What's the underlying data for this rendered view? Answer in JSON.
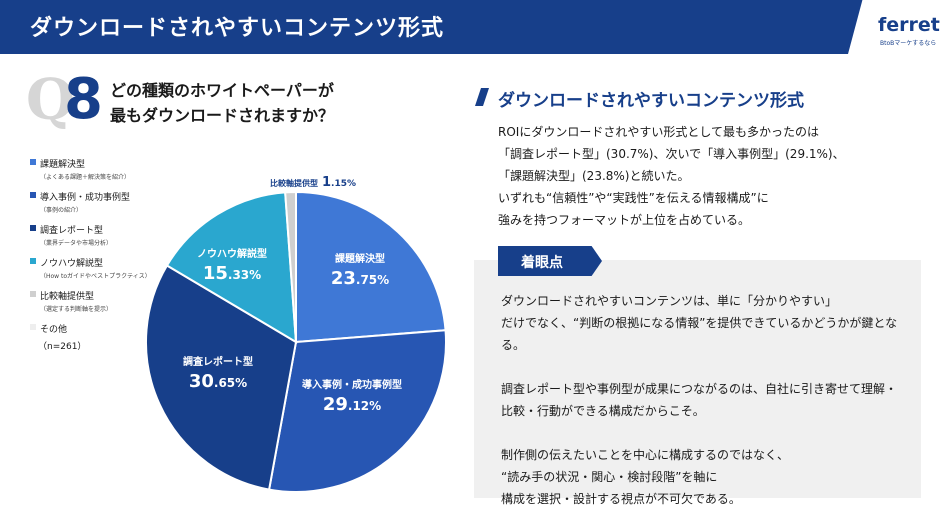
{
  "header": {
    "title": "ダウンロードされやすいコンテンツ形式",
    "logo_word": "ferret",
    "logo_sub": "BtoBマーケするなら"
  },
  "question": {
    "q_letter": "Q",
    "q_number": "8",
    "line1": "どの種類のホワイトペーパーが",
    "line2": "最もダウンロードされますか？"
  },
  "legend": {
    "items": [
      {
        "label": "課題解決型",
        "sub": "（よくある課題＋解決策を紹介）",
        "color": "#3f78d6"
      },
      {
        "label": "導入事例・成功事例型",
        "sub": "（事例の紹介）",
        "color": "#2756b3"
      },
      {
        "label": "調査レポート型",
        "sub": "（業界データや市場分析）",
        "color": "#173f8a"
      },
      {
        "label": "ノウハウ解説型",
        "sub": "（How toガイドやベストプラクティス）",
        "color": "#2aa7cf"
      },
      {
        "label": "比較軸提供型",
        "sub": "（選定する判断軸を提示）",
        "color": "#cfcfcf"
      },
      {
        "label": "その他",
        "sub": "",
        "color": "#eeeeee"
      }
    ],
    "n": "（n=261）"
  },
  "chart_data": {
    "type": "pie",
    "slices": [
      {
        "label": "課題解決型",
        "value": 23.75,
        "int": "23",
        "dec": ".75%",
        "color": "#3f78d6"
      },
      {
        "label": "導入事例・成功事例型",
        "value": 29.12,
        "int": "29",
        "dec": ".12%",
        "color": "#2756b3"
      },
      {
        "label": "調査レポート型",
        "value": 30.65,
        "int": "30",
        "dec": ".65%",
        "color": "#173f8a"
      },
      {
        "label": "ノウハウ解説型",
        "value": 15.33,
        "int": "15",
        "dec": ".33%",
        "color": "#2aa7cf"
      },
      {
        "label": "比較軸提供型",
        "value": 1.15,
        "int": "1",
        "dec": ".15%",
        "color": "#cfcfcf"
      }
    ]
  },
  "right": {
    "title": "ダウンロードされやすいコンテンツ形式",
    "summary": [
      "ROIにダウンロードされやすい形式として最も多かったのは",
      "「調査レポート型」(30.7%)、次いで「導入事例型」(29.1%)、",
      "「課題解決型」(23.8%)と続いた。",
      "いずれも“信頼性”や“実践性”を伝える情報構成”に",
      "強みを持つフォーマットが上位を占めている。"
    ]
  },
  "panel": {
    "tag": "着眼点",
    "lines": [
      "ダウンロードされやすいコンテンツは、単に「分かりやすい」",
      "だけでなく、“判断の根拠になる情報”を提供できているかどうかが鍵とな",
      "る。",
      "",
      "調査レポート型や事例型が成果につながるのは、自社に引き寄せて理解・",
      "比較・行動ができる構成だからこそ。",
      "",
      "制作側の伝えたいことを中心に構成するのではなく、",
      "“読み手の状況・関心・検討段階”を軸に",
      "構成を選択・設計する視点が不可欠である。"
    ]
  }
}
